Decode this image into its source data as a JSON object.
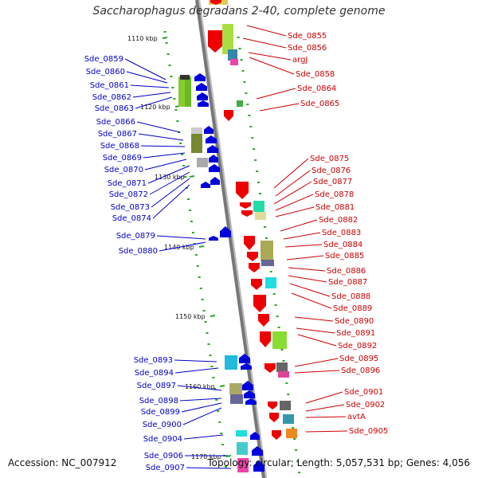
{
  "title": "Saccharophagus degradans 2-40, complete genome",
  "footer": {
    "accession": "Accession: NC_007912",
    "topology": "Topology: circular; Length: 5,057,531 bp; Genes: 4,056"
  },
  "colors": {
    "forward": "#ee0000",
    "reverse": "#0000dd",
    "forward_label": "#cc0000",
    "reverse_label": "#0000cc",
    "backbone": "#888888",
    "tick": "#22aa22"
  },
  "ticks": [
    "1110 kbp",
    "1120 kbp",
    "1130 kbp",
    "1140 kbp",
    "1150 kbp",
    "1160 kbp",
    "1170 kbp"
  ],
  "genes_forward": [
    "Sde_0855",
    "Sde_0856",
    "argJ",
    "Sde_0858",
    "Sde_0864",
    "Sde_0865",
    "Sde_0875",
    "Sde_0876",
    "Sde_0877",
    "Sde_0878",
    "Sde_0881",
    "Sde_0882",
    "Sde_0883",
    "Sde_0884",
    "Sde_0885",
    "Sde_0886",
    "Sde_0887",
    "Sde_0888",
    "Sde_0889",
    "Sde_0890",
    "Sde_0891",
    "Sde_0892",
    "Sde_0895",
    "Sde_0896",
    "Sde_0901",
    "Sde_0902",
    "avtA",
    "Sde_0905"
  ],
  "genes_reverse": [
    "Sde_0859",
    "Sde_0860",
    "Sde_0861",
    "Sde_0862",
    "Sde_0863",
    "Sde_0866",
    "Sde_0867",
    "Sde_0868",
    "Sde_0869",
    "Sde_0870",
    "Sde_0871",
    "Sde_0872",
    "Sde_0873",
    "Sde_0874",
    "Sde_0879",
    "Sde_0880",
    "Sde_0893",
    "Sde_0894",
    "Sde_0897",
    "Sde_0898",
    "Sde_0899",
    "Sde_0900",
    "Sde_0904",
    "Sde_0906",
    "Sde_0907"
  ]
}
